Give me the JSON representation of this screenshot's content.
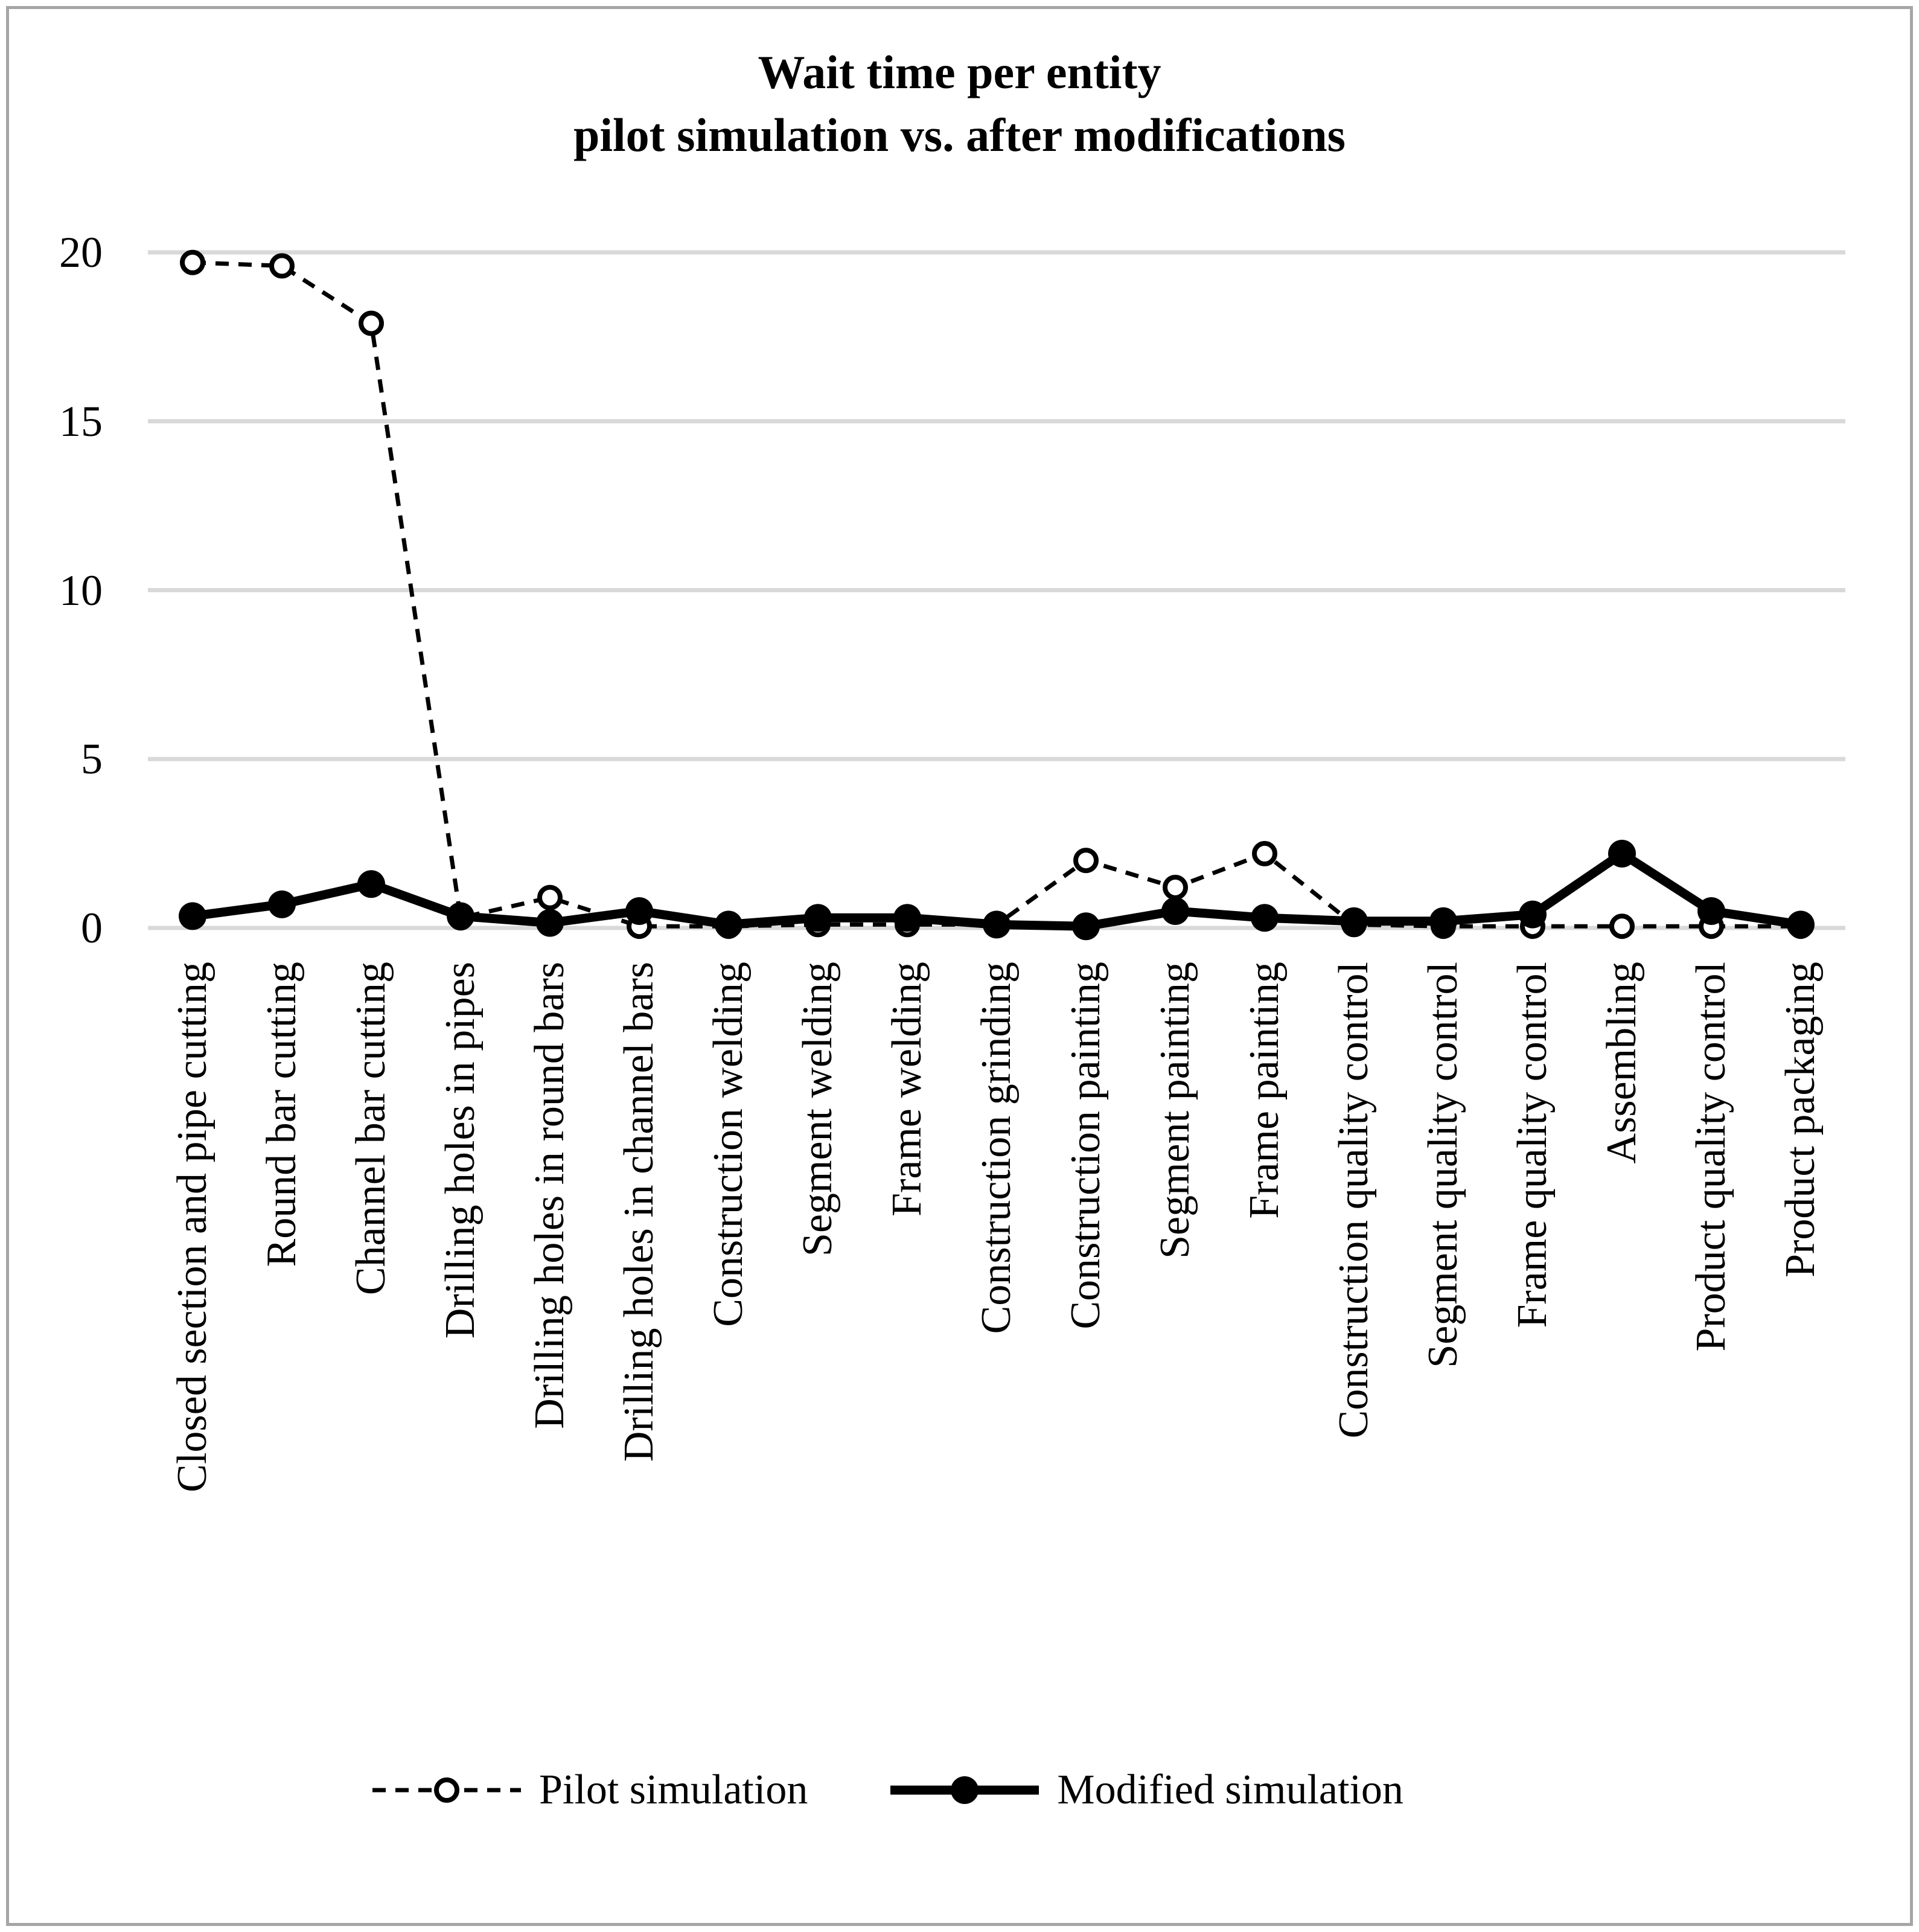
{
  "title": {
    "line1": "Wait time per entity",
    "line2": "pilot simulation vs. after modifications"
  },
  "legend": {
    "pilot": "Pilot simulation",
    "modified": "Modified simulation"
  },
  "colors": {
    "background": "#ffffff",
    "frame_border": "#a6a6a6",
    "gridline": "#d9d9d9",
    "series": "#000000"
  },
  "chart_data": {
    "type": "line",
    "title": "Wait time per entity",
    "subtitle": "pilot simulation vs. after modifications",
    "categories": [
      "Closed section and pipe cutting",
      "Round bar cutting",
      "Channel bar cutting",
      "Drilling holes in pipes",
      "Drilling holes in round bars",
      "Drilling holes in channel bars",
      "Construction welding",
      "Segment welding",
      "Frame welding",
      "Construction grinding",
      "Construction painting",
      "Segment painting",
      "Frame painting",
      "Construction quality control",
      "Segment quality control",
      "Frame quality control",
      "Assembling",
      "Product quality control",
      "Product packaging"
    ],
    "series": [
      {
        "name": "Pilot simulation",
        "style": "dashed-line-open-circle-markers",
        "values": [
          19.7,
          19.6,
          17.9,
          0.3,
          0.9,
          0.05,
          0.05,
          0.1,
          0.1,
          0.1,
          2.0,
          1.2,
          2.2,
          0.1,
          0.05,
          0.05,
          0.05,
          0.05,
          0.05
        ]
      },
      {
        "name": "Modified simulation",
        "style": "solid-thick-line-filled-circle-markers",
        "values": [
          0.35,
          0.7,
          1.3,
          0.35,
          0.15,
          0.5,
          0.1,
          0.3,
          0.3,
          0.1,
          0.05,
          0.5,
          0.3,
          0.2,
          0.2,
          0.4,
          2.2,
          0.5,
          0.1
        ]
      }
    ],
    "xlabel": "",
    "ylabel": "",
    "yticks": [
      0,
      5,
      10,
      15,
      20
    ],
    "ylim": [
      0,
      21.5
    ],
    "grid": "horizontal",
    "legend_position": "bottom"
  }
}
